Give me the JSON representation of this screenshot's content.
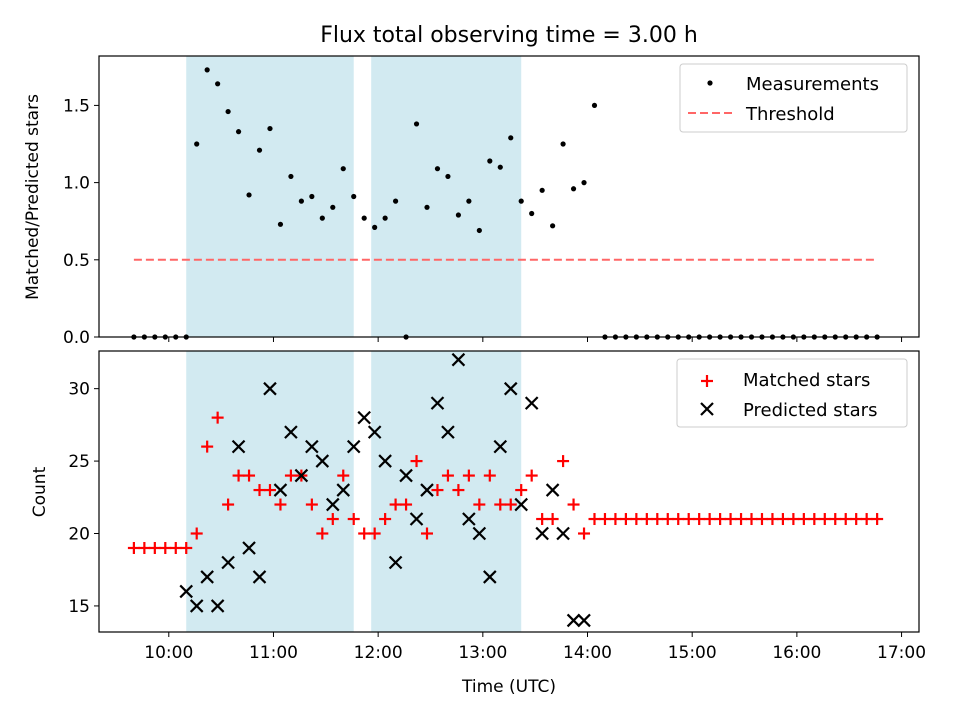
{
  "figure": {
    "title": "Flux total observing time = 3.00 h",
    "xlabel": "Time (UTC)"
  },
  "chart_data": [
    {
      "type": "scatter",
      "panel": "top",
      "ylabel": "Matched/Predicted stars",
      "xlim": [
        "09:20",
        "17:10"
      ],
      "ylim": [
        0,
        1.82
      ],
      "yticks": [
        0.0,
        0.5,
        1.0,
        1.5
      ],
      "ytick_labels": [
        "0.0",
        "0.5",
        "1.0",
        "1.5"
      ],
      "legend_position": "top-right",
      "shaded_spans": [
        [
          "10:10",
          "11:46"
        ],
        [
          "11:56",
          "13:22"
        ]
      ],
      "shade_color": "#add8e6",
      "series": [
        {
          "name": "Measurements",
          "kind": "point",
          "color": "#000000",
          "x": [
            "09:40",
            "09:46",
            "09:52",
            "09:58",
            "10:04",
            "10:10",
            "10:16",
            "10:22",
            "10:28",
            "10:34",
            "10:40",
            "10:46",
            "10:52",
            "10:58",
            "11:04",
            "11:10",
            "11:16",
            "11:22",
            "11:28",
            "11:34",
            "11:40",
            "11:46",
            "11:52",
            "11:58",
            "12:04",
            "12:10",
            "12:16",
            "12:22",
            "12:28",
            "12:34",
            "12:40",
            "12:46",
            "12:52",
            "12:58",
            "13:04",
            "13:10",
            "13:16",
            "13:22",
            "13:28",
            "13:34",
            "13:40",
            "13:46",
            "13:52",
            "13:58",
            "14:04",
            "14:10",
            "14:16",
            "14:22",
            "14:28",
            "14:34",
            "14:40",
            "14:46",
            "14:52",
            "14:58",
            "15:04",
            "15:10",
            "15:16",
            "15:22",
            "15:28",
            "15:34",
            "15:40",
            "15:46",
            "15:52",
            "15:58",
            "16:04",
            "16:10",
            "16:16",
            "16:22",
            "16:28",
            "16:34",
            "16:40",
            "16:46"
          ],
          "y": [
            0.0,
            0.0,
            0.0,
            0.0,
            0.0,
            0.0,
            1.25,
            1.73,
            1.64,
            1.46,
            1.33,
            0.92,
            1.21,
            1.35,
            0.73,
            1.04,
            0.88,
            0.91,
            0.77,
            0.84,
            1.09,
            0.91,
            0.77,
            0.71,
            0.77,
            0.88,
            0.0,
            1.38,
            0.84,
            1.09,
            1.04,
            0.79,
            0.88,
            0.69,
            1.14,
            1.1,
            1.29,
            0.88,
            0.8,
            0.95,
            0.72,
            1.25,
            0.96,
            1.0,
            1.5,
            0.0,
            0.0,
            0.0,
            0.0,
            0.0,
            0.0,
            0.0,
            0.0,
            0.0,
            0.0,
            0.0,
            0.0,
            0.0,
            0.0,
            0.0,
            0.0,
            0.0,
            0.0,
            0.0,
            0.0,
            0.0,
            0.0,
            0.0,
            0.0,
            0.0,
            0.0,
            0.0
          ]
        },
        {
          "name": "Threshold",
          "kind": "dashed-line",
          "color": "#ff6666",
          "x": [
            "09:40",
            "16:46"
          ],
          "y": [
            0.5,
            0.5
          ]
        }
      ]
    },
    {
      "type": "scatter",
      "panel": "bottom",
      "ylabel": "Count",
      "xlim": [
        "09:20",
        "17:10"
      ],
      "ylim": [
        13.2,
        32.6
      ],
      "yticks": [
        15,
        20,
        25,
        30
      ],
      "ytick_labels": [
        "15",
        "20",
        "25",
        "30"
      ],
      "xtick_labels": [
        "10:00",
        "11:00",
        "12:00",
        "13:00",
        "14:00",
        "15:00",
        "16:00",
        "17:00"
      ],
      "legend_position": "top-right",
      "shaded_spans": [
        [
          "10:10",
          "11:46"
        ],
        [
          "11:56",
          "13:22"
        ]
      ],
      "shade_color": "#add8e6",
      "series": [
        {
          "name": "Matched stars",
          "kind": "plus",
          "color": "#ff0000",
          "x": [
            "09:40",
            "09:46",
            "09:52",
            "09:58",
            "10:04",
            "10:10",
            "10:16",
            "10:22",
            "10:28",
            "10:34",
            "10:40",
            "10:46",
            "10:52",
            "10:58",
            "11:04",
            "11:10",
            "11:16",
            "11:22",
            "11:28",
            "11:34",
            "11:40",
            "11:46",
            "11:52",
            "11:58",
            "12:04",
            "12:10",
            "12:16",
            "12:22",
            "12:28",
            "12:34",
            "12:40",
            "12:46",
            "12:52",
            "12:58",
            "13:04",
            "13:10",
            "13:16",
            "13:22",
            "13:28",
            "13:34",
            "13:40",
            "13:46",
            "13:52",
            "13:58",
            "14:04",
            "14:10",
            "14:16",
            "14:22",
            "14:28",
            "14:34",
            "14:40",
            "14:46",
            "14:52",
            "14:58",
            "15:04",
            "15:10",
            "15:16",
            "15:22",
            "15:28",
            "15:34",
            "15:40",
            "15:46",
            "15:52",
            "15:58",
            "16:04",
            "16:10",
            "16:16",
            "16:22",
            "16:28",
            "16:34",
            "16:40",
            "16:46"
          ],
          "y": [
            19,
            19,
            19,
            19,
            19,
            19,
            20,
            26,
            28,
            22,
            24,
            24,
            23,
            23,
            22,
            24,
            24,
            22,
            20,
            21,
            24,
            21,
            20,
            20,
            21,
            22,
            22,
            25,
            20,
            23,
            24,
            23,
            24,
            22,
            24,
            22,
            22,
            23,
            24,
            21,
            21,
            25,
            22,
            20,
            21,
            21,
            21,
            21,
            21,
            21,
            21,
            21,
            21,
            21,
            21,
            21,
            21,
            21,
            21,
            21,
            21,
            21,
            21,
            21,
            21,
            21,
            21,
            21,
            21,
            21,
            21,
            21
          ]
        },
        {
          "name": "Predicted stars",
          "kind": "x",
          "color": "#000000",
          "x": [
            "10:10",
            "10:16",
            "10:22",
            "10:28",
            "10:34",
            "10:40",
            "10:46",
            "10:52",
            "10:58",
            "11:04",
            "11:10",
            "11:16",
            "11:22",
            "11:28",
            "11:34",
            "11:40",
            "11:46",
            "11:52",
            "11:58",
            "12:04",
            "12:10",
            "12:16",
            "12:22",
            "12:28",
            "12:34",
            "12:40",
            "12:46",
            "12:52",
            "12:58",
            "13:04",
            "13:10",
            "13:16",
            "13:22",
            "13:28",
            "13:34",
            "13:40",
            "13:46",
            "13:52",
            "13:58"
          ],
          "y": [
            16,
            15,
            17,
            15,
            18,
            26,
            19,
            17,
            30,
            23,
            27,
            24,
            26,
            25,
            22,
            23,
            26,
            28,
            27,
            25,
            18,
            24,
            21,
            23,
            29,
            27,
            32,
            21,
            20,
            17,
            26,
            30,
            22,
            29,
            20,
            23,
            20,
            14,
            14
          ]
        }
      ]
    }
  ]
}
